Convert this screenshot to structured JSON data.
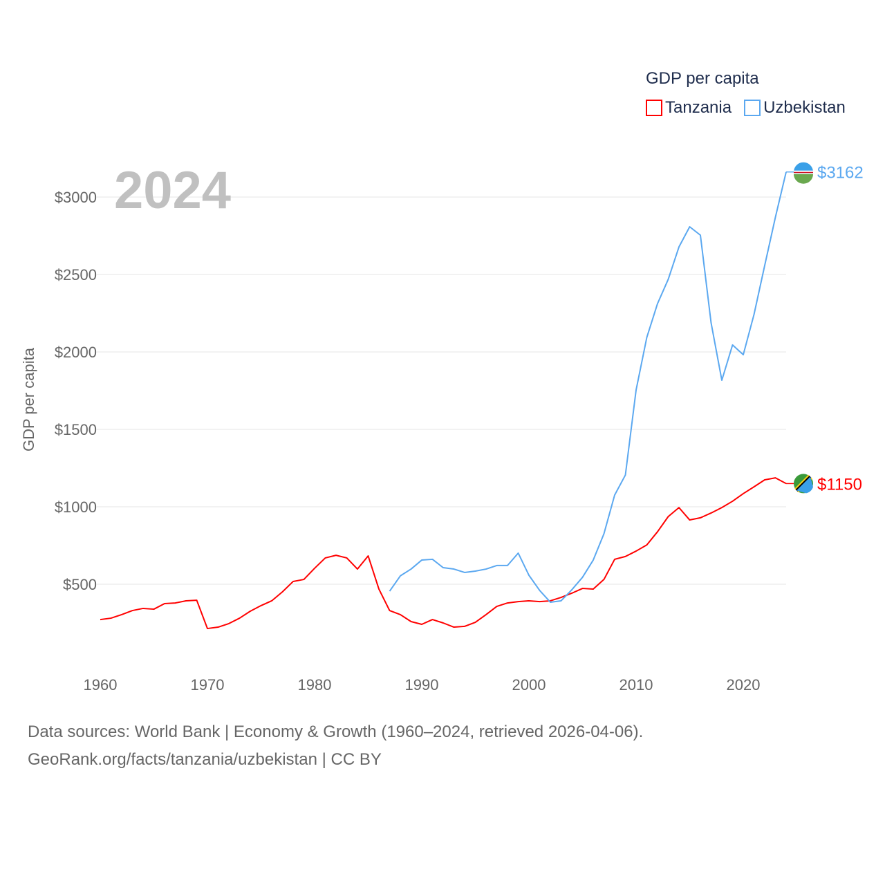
{
  "chart_data": {
    "type": "line",
    "title": "GDP per capita",
    "year_label": "2024",
    "ylabel": "GDP per capita",
    "xlabel": "",
    "xlim": [
      1960,
      2024
    ],
    "ylim": [
      0,
      3300
    ],
    "x_ticks": [
      "1960",
      "1970",
      "1980",
      "1990",
      "2000",
      "2010",
      "2020"
    ],
    "y_ticks": [
      "$500",
      "$1000",
      "$1500",
      "$2000",
      "$2500",
      "$3000"
    ],
    "y_tick_values": [
      500,
      1000,
      1500,
      2000,
      2500,
      3000
    ],
    "grid": true,
    "legend_position": "top-right",
    "series": [
      {
        "name": "Tanzania",
        "color": "#ff0000",
        "end_label": "$1150",
        "start_year": 1960,
        "values": [
          272,
          281,
          304,
          330,
          344,
          339,
          375,
          379,
          393,
          397,
          214,
          223,
          246,
          281,
          326,
          362,
          393,
          451,
          518,
          531,
          603,
          670,
          687,
          670,
          598,
          683,
          469,
          330,
          304,
          259,
          241,
          272,
          250,
          223,
          228,
          254,
          304,
          357,
          379,
          388,
          393,
          388,
          393,
          415,
          442,
          473,
          469,
          531,
          661,
          679,
          714,
          754,
          839,
          937,
          995,
          915,
          929,
          960,
          995,
          1036,
          1085,
          1129,
          1174,
          1187,
          1150
        ]
      },
      {
        "name": "Uzbekistan",
        "color": "#5ba8f0",
        "end_label": "$3162",
        "start_year": 1987,
        "values": [
          455,
          554,
          598,
          656,
          661,
          607,
          598,
          576,
          585,
          598,
          621,
          621,
          701,
          558,
          460,
          384,
          393,
          464,
          545,
          656,
          826,
          1076,
          1205,
          1754,
          2094,
          2312,
          2469,
          2678,
          2808,
          2754,
          2187,
          1817,
          2045,
          1982,
          2241,
          2558,
          2870,
          3162
        ]
      }
    ]
  },
  "source": {
    "line1": "Data sources: World Bank | Economy & Growth (1960–2024, retrieved 2026-04-06).",
    "line2": "GeoRank.org/facts/tanzania/uzbekistan | CC BY"
  }
}
